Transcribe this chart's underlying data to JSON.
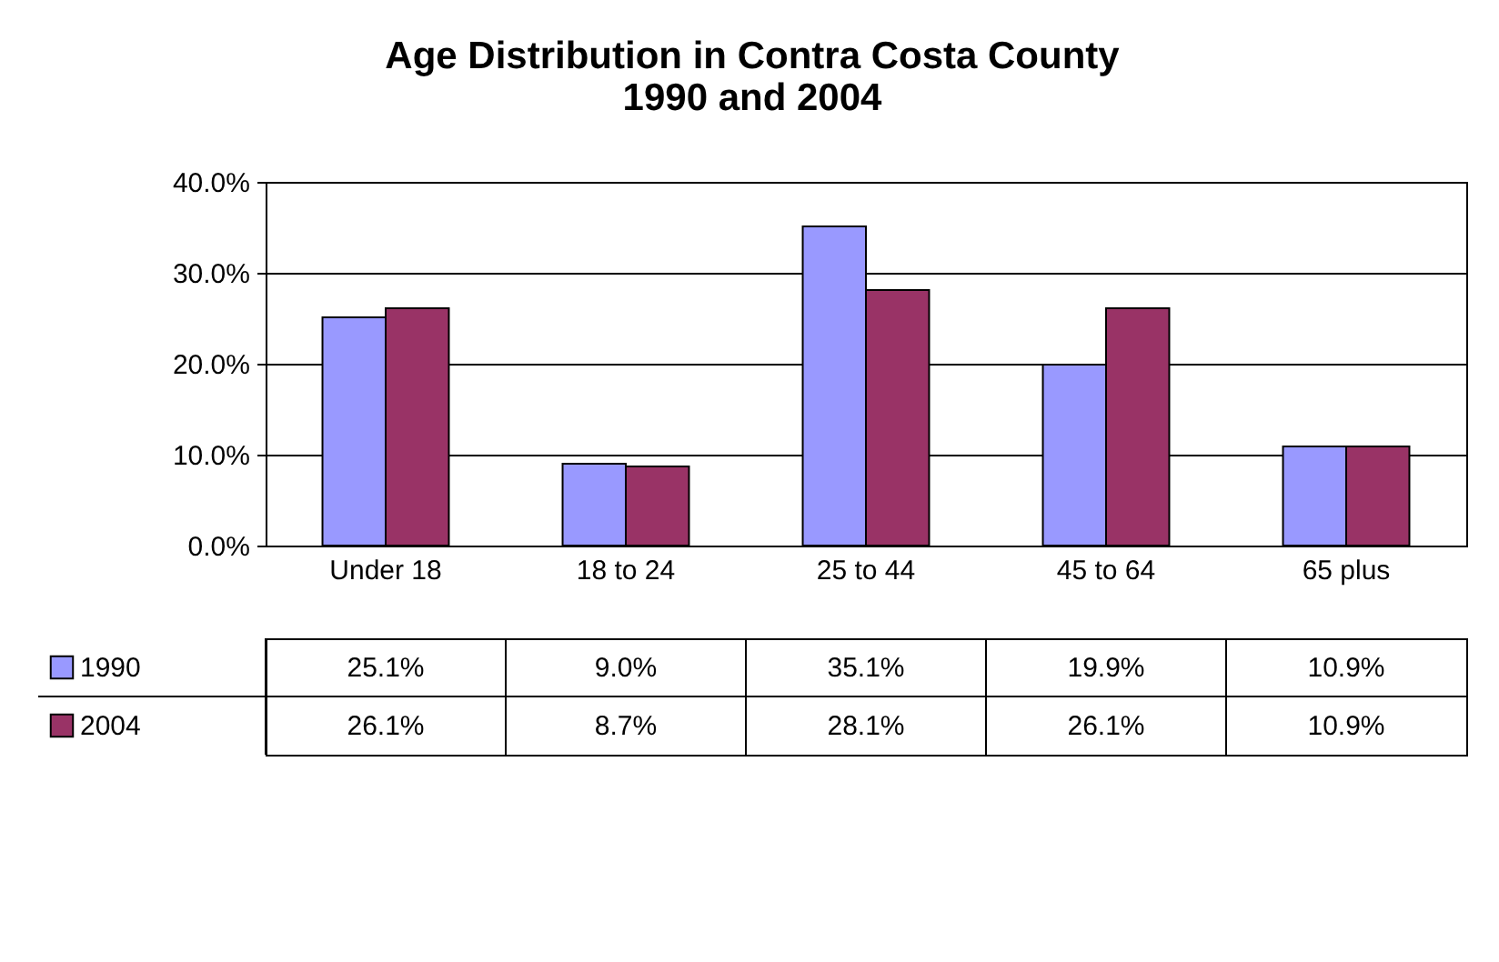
{
  "chart_data": {
    "type": "bar",
    "title": [
      "Age Distribution in Contra Costa County",
      "1990 and 2004"
    ],
    "categories": [
      "Under 18",
      "18 to 24",
      "25 to 44",
      "45 to 64",
      "65 plus"
    ],
    "series": [
      {
        "name": "1990",
        "color": "#9999ff",
        "values": [
          25.1,
          9.0,
          35.1,
          19.9,
          10.9
        ],
        "value_labels": [
          "25.1%",
          "9.0%",
          "35.1%",
          "19.9%",
          "10.9%"
        ]
      },
      {
        "name": "2004",
        "color": "#993366",
        "values": [
          26.1,
          8.7,
          28.1,
          26.1,
          10.9
        ],
        "value_labels": [
          "26.1%",
          "8.7%",
          "28.1%",
          "26.1%",
          "10.9%"
        ]
      }
    ],
    "ylim": [
      0,
      40
    ],
    "yticks": [
      {
        "value": 0,
        "label": "0.0%"
      },
      {
        "value": 10,
        "label": "10.0%"
      },
      {
        "value": 20,
        "label": "20.0%"
      },
      {
        "value": 30,
        "label": "30.0%"
      },
      {
        "value": 40,
        "label": "40.0%"
      }
    ],
    "grid": "y",
    "legend": "bottom left"
  }
}
